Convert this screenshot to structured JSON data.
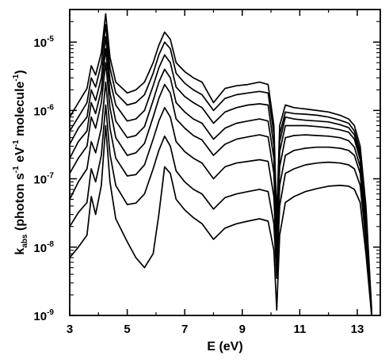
{
  "chart_data": {
    "type": "line",
    "title": "",
    "xlabel": "E (eV)",
    "ylabel": {
      "base": "k",
      "sub": "abs",
      "unit_open": " (photon s",
      "exp1": "-1",
      "mid1": " eV",
      "exp2": "-1",
      "mid2": " molecule",
      "exp3": "-1",
      "unit_close": ")"
    },
    "xlim": [
      3,
      13.8
    ],
    "ylim": [
      1e-09,
      3e-05
    ],
    "yscale": "log",
    "grid": false,
    "legend": "none",
    "x_ticks": [
      {
        "value": 3,
        "label": "3"
      },
      {
        "value": 5,
        "label": "5"
      },
      {
        "value": 7,
        "label": "7"
      },
      {
        "value": 9,
        "label": "9"
      },
      {
        "value": 11,
        "label": "11"
      },
      {
        "value": 13,
        "label": "13"
      }
    ],
    "y_ticks": [
      {
        "value": 1e-09,
        "base": "10",
        "exp": "-9"
      },
      {
        "value": 1e-08,
        "base": "10",
        "exp": "-8"
      },
      {
        "value": 1e-07,
        "base": "10",
        "exp": "-7"
      },
      {
        "value": 1e-06,
        "base": "10",
        "exp": "-6"
      },
      {
        "value": 1e-05,
        "base": "10",
        "exp": "-5"
      }
    ],
    "x": [
      3.0,
      3.3,
      3.6,
      3.75,
      3.9,
      4.1,
      4.25,
      4.4,
      4.6,
      5.0,
      5.3,
      5.6,
      5.9,
      6.1,
      6.3,
      6.5,
      6.7,
      7.0,
      7.3,
      7.6,
      8.0,
      8.4,
      8.8,
      9.2,
      9.6,
      9.9,
      10.1,
      10.2,
      10.3,
      10.5,
      10.8,
      11.2,
      11.6,
      12.0,
      12.4,
      12.7,
      12.9,
      13.1,
      13.3,
      13.5
    ],
    "series": [
      {
        "values": [
          8e-07,
          1.3e-06,
          2.1e-06,
          4.5e-06,
          3.3e-06,
          7e-06,
          2.6e-05,
          6e-06,
          2.6e-06,
          1.8e-06,
          2e-06,
          2.6e-06,
          5e-06,
          9e-06,
          1.4e-05,
          1.1e-05,
          5e-06,
          3.7e-06,
          3e-06,
          2.6e-06,
          1.3e-06,
          2.1e-06,
          2.3e-06,
          2.4e-06,
          2.6e-06,
          2.4e-06,
          6e-07,
          2.5e-08,
          6e-07,
          1.2e-06,
          1.1e-06,
          1.05e-06,
          1e-06,
          9.5e-07,
          8.5e-07,
          7.5e-07,
          6e-07,
          3e-07,
          4e-08,
          1.2e-09
        ]
      },
      {
        "values": [
          5e-07,
          8e-07,
          1.3e-06,
          3e-06,
          2.2e-06,
          4.8e-06,
          1.8e-05,
          4.2e-06,
          1.8e-06,
          1.2e-06,
          1.3e-06,
          1.7e-06,
          3.5e-06,
          6.5e-06,
          1e-05,
          8e-06,
          3.5e-06,
          2.5e-06,
          2e-06,
          1.7e-06,
          1e-06,
          1.5e-06,
          1.7e-06,
          1.8e-06,
          1.9e-06,
          1.8e-06,
          4.5e-07,
          1.8e-08,
          4.5e-07,
          9.5e-07,
          9e-07,
          8.8e-07,
          8.5e-07,
          8e-07,
          7.2e-07,
          6.5e-07,
          5e-07,
          2.5e-07,
          3e-08,
          1.1e-09
        ]
      },
      {
        "values": [
          3.2e-07,
          5.5e-07,
          8e-07,
          2e-06,
          1.4e-06,
          3e-06,
          1.2e-05,
          2.8e-06,
          1.2e-06,
          7e-07,
          7.5e-07,
          1e-06,
          2.3e-06,
          4.2e-06,
          6.5e-06,
          5e-06,
          2.2e-06,
          1.6e-06,
          1.3e-06,
          1.1e-06,
          6.5e-07,
          9.5e-07,
          1.1e-06,
          1.2e-06,
          1.25e-06,
          1.2e-06,
          3e-07,
          1.3e-08,
          3.5e-07,
          8e-07,
          7.5e-07,
          7.2e-07,
          7e-07,
          6.8e-07,
          6.2e-07,
          5.6e-07,
          4.4e-07,
          2.2e-07,
          2.5e-08,
          1.1e-09
        ]
      },
      {
        "values": [
          2e-07,
          3.5e-07,
          5e-07,
          1.3e-06,
          9e-07,
          2e-06,
          8e-06,
          1.8e-06,
          7e-07,
          4e-07,
          4.3e-07,
          5.8e-07,
          1.4e-06,
          2.6e-06,
          4e-06,
          3e-06,
          1.3e-06,
          9.5e-07,
          7.5e-07,
          6.5e-07,
          3.8e-07,
          5.5e-07,
          6.5e-07,
          7e-07,
          7.5e-07,
          7e-07,
          2e-07,
          1.1e-08,
          2.5e-07,
          6e-07,
          6e-07,
          6e-07,
          5.8e-07,
          5.6e-07,
          5.2e-07,
          4.8e-07,
          3.8e-07,
          1.9e-07,
          2e-08,
          1e-09
        ]
      },
      {
        "values": [
          1.2e-07,
          2e-07,
          3e-07,
          8e-07,
          5.5e-07,
          1.3e-06,
          5e-06,
          1.1e-06,
          4e-07,
          2.2e-07,
          2.4e-07,
          3.3e-07,
          8e-07,
          1.5e-06,
          2.4e-06,
          1.8e-06,
          7.5e-07,
          5.5e-07,
          4.3e-07,
          3.7e-07,
          2.2e-07,
          3.2e-07,
          3.8e-07,
          4.1e-07,
          4.4e-07,
          4.1e-07,
          1.2e-07,
          8e-09,
          1.5e-07,
          4e-07,
          4.3e-07,
          4.4e-07,
          4.3e-07,
          4.2e-07,
          4e-07,
          3.6e-07,
          2.9e-07,
          1.5e-07,
          1.7e-08,
          1e-09
        ]
      },
      {
        "values": [
          5e-08,
          9e-08,
          1.4e-07,
          3.5e-07,
          2.4e-07,
          5.5e-07,
          2.6e-06,
          5.5e-07,
          2e-07,
          1.1e-07,
          1.15e-07,
          1.6e-07,
          3.8e-07,
          7e-07,
          1.1e-06,
          8e-07,
          3.5e-07,
          2.5e-07,
          2e-07,
          1.7e-07,
          1e-07,
          1.5e-07,
          1.7e-07,
          1.8e-07,
          1.9e-07,
          1.8e-07,
          5.5e-08,
          5e-09,
          8e-08,
          2.2e-07,
          2.6e-07,
          2.8e-07,
          2.9e-07,
          2.9e-07,
          2.8e-07,
          2.6e-07,
          2.2e-07,
          1.2e-07,
          1.5e-08,
          1e-09
        ]
      },
      {
        "values": [
          2e-08,
          3.2e-08,
          4.5e-08,
          1.4e-07,
          9e-08,
          2.2e-07,
          1.2e-06,
          2.3e-07,
          8e-08,
          4.2e-08,
          4.4e-08,
          6e-08,
          1.4e-07,
          2.6e-07,
          4.2e-07,
          3e-07,
          1.3e-07,
          9e-08,
          7e-08,
          6e-08,
          3.6e-08,
          5.3e-08,
          6e-08,
          6.5e-08,
          7e-08,
          6.5e-08,
          2.2e-08,
          3.5e-09,
          4e-08,
          1.2e-07,
          1.4e-07,
          1.6e-07,
          1.7e-07,
          1.75e-07,
          1.7e-07,
          1.6e-07,
          1.4e-07,
          8e-08,
          1.2e-08,
          1e-09
        ]
      },
      {
        "values": [
          7e-09,
          1e-08,
          1.5e-08,
          5.5e-08,
          3e-08,
          8e-08,
          6e-07,
          9e-08,
          2.6e-08,
          1.2e-08,
          7e-09,
          5e-09,
          8e-09,
          3e-08,
          1.5e-07,
          1.2e-07,
          5e-08,
          3.5e-08,
          2.7e-08,
          2.2e-08,
          1.3e-08,
          1.9e-08,
          2.2e-08,
          2.4e-08,
          2.6e-08,
          2.4e-08,
          9e-09,
          1.2e-09,
          1.5e-08,
          4.5e-08,
          5.5e-08,
          6.5e-08,
          7.2e-08,
          7.8e-08,
          8e-08,
          7.8e-08,
          7e-08,
          4.5e-08,
          8e-09,
          1e-09
        ]
      }
    ]
  }
}
